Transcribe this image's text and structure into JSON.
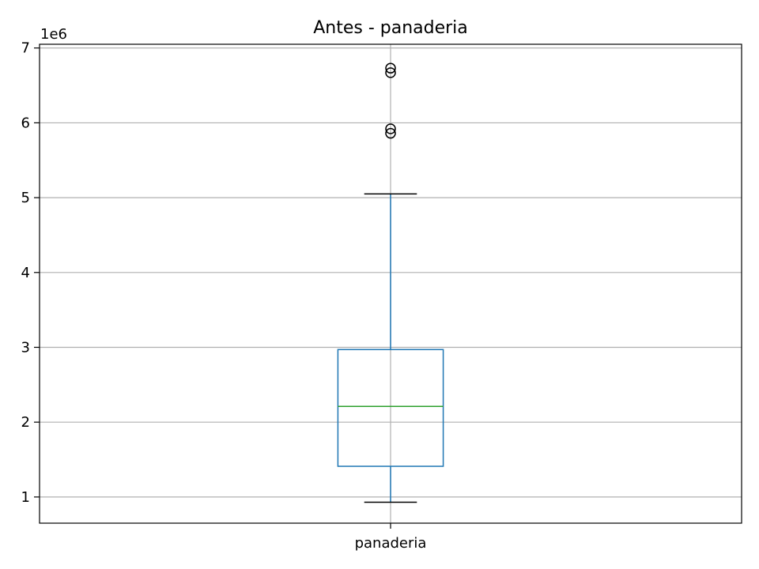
{
  "chart_data": {
    "type": "box",
    "title": "Antes - panaderia",
    "xlabel": "",
    "ylabel": "",
    "categories": [
      "panaderia"
    ],
    "y_offset_label": "1e6",
    "y_scale_multiplier": 1000000,
    "ylim": [
      0.65,
      7.05
    ],
    "y_ticks": [
      1,
      2,
      3,
      4,
      5,
      6,
      7
    ],
    "grid": true,
    "series": [
      {
        "category": "panaderia",
        "whisker_low": 0.93,
        "q1": 1.41,
        "median": 2.21,
        "q3": 2.97,
        "whisker_high": 5.05,
        "outliers": [
          5.86,
          5.92,
          6.67,
          6.73
        ]
      }
    ],
    "colors": {
      "box": "#1f77b4",
      "median": "#2ca02c",
      "caps": "#000000",
      "outlier": "#000000",
      "grid": "#b0b0b0",
      "axes": "#000000"
    }
  }
}
